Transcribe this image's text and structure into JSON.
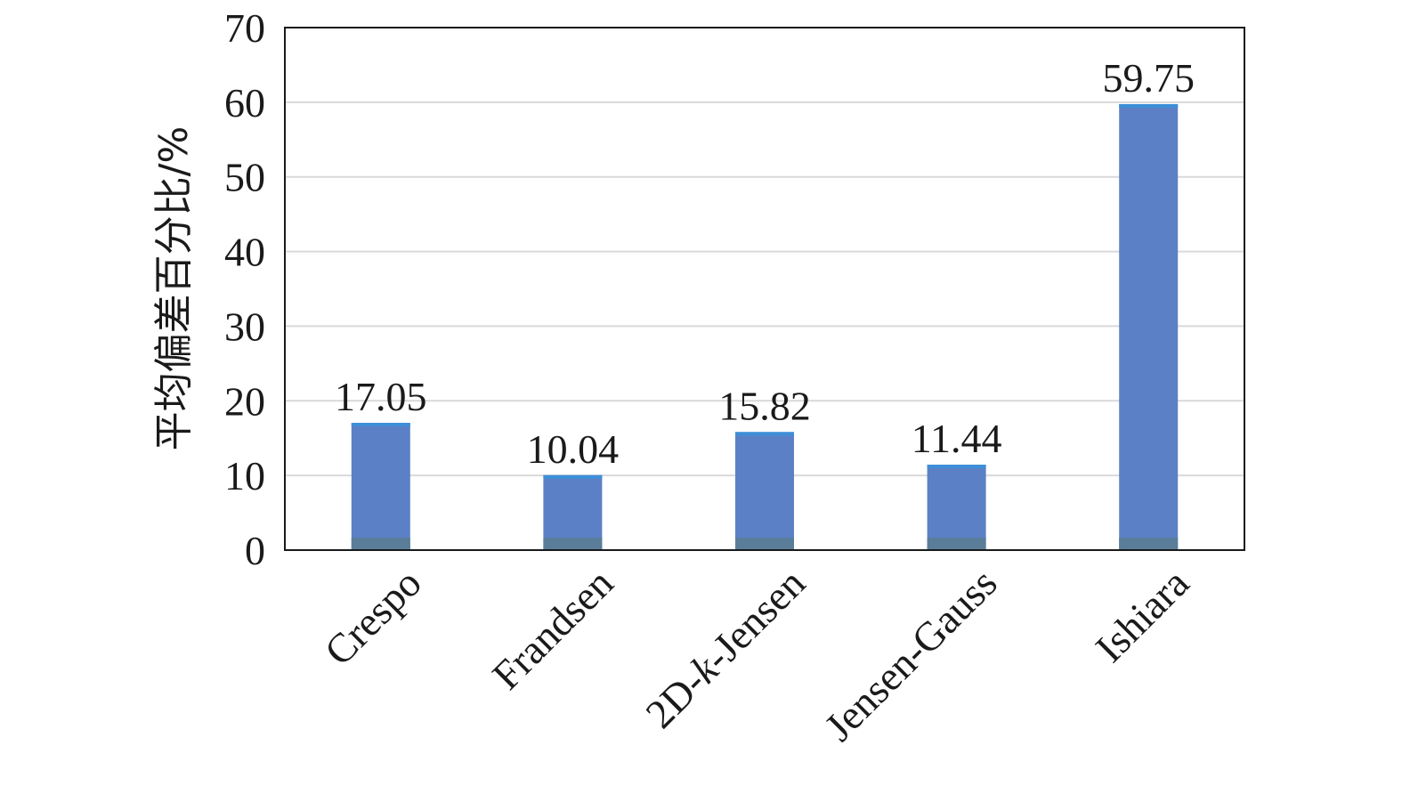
{
  "chart_data": {
    "type": "bar",
    "categories": [
      "Crespo",
      "Frandsen",
      "2D-k-Jensen",
      "Jensen-Gauss",
      "Ishiara"
    ],
    "category_parts": [
      [
        {
          "text": "Crespo",
          "italic": false
        }
      ],
      [
        {
          "text": "Frandsen",
          "italic": false
        }
      ],
      [
        {
          "text": "2D-",
          "italic": false
        },
        {
          "text": "k",
          "italic": true
        },
        {
          "text": "-Jensen",
          "italic": false
        }
      ],
      [
        {
          "text": "Jensen-Gauss",
          "italic": false
        }
      ],
      [
        {
          "text": "Ishiara",
          "italic": false
        }
      ]
    ],
    "values": [
      17.05,
      10.04,
      15.82,
      11.44,
      59.75
    ],
    "data_labels": [
      "17.05",
      "10.04",
      "15.82",
      "11.44",
      "59.75"
    ],
    "title": "",
    "xlabel": "",
    "ylabel": "平均偏差百分比/%",
    "ylim": [
      0,
      70
    ],
    "yticks": [
      0,
      10,
      20,
      30,
      40,
      50,
      60,
      70
    ],
    "grid": true,
    "legend": "none",
    "colors": {
      "bar": "#5b80c6",
      "bar_top": "#3d8fd8",
      "bar_base": "#5a7d9a",
      "grid": "#d9d9d9",
      "axis": "#1a1a1a"
    }
  }
}
